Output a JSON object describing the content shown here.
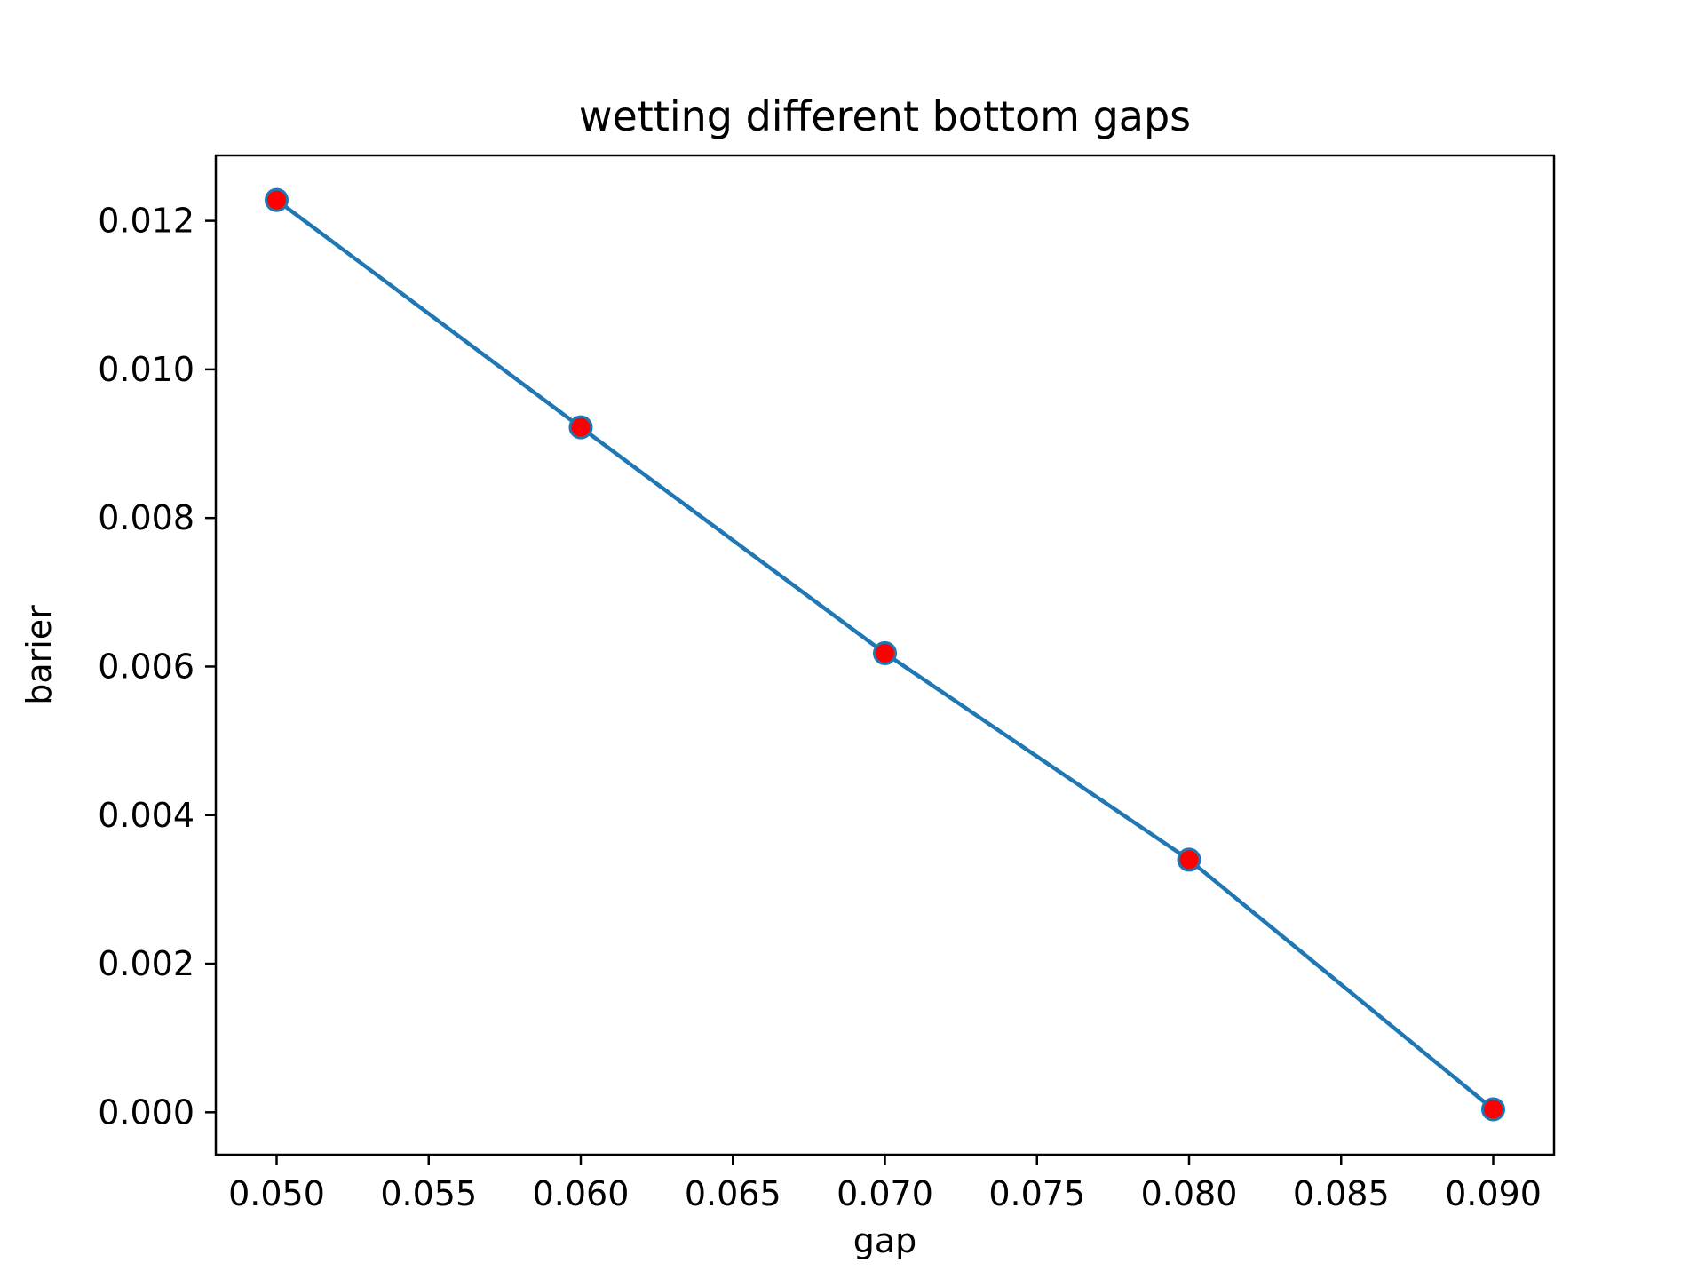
{
  "chart_data": {
    "type": "line",
    "title": "wetting different bottom gaps",
    "xlabel": "gap",
    "ylabel": "barier",
    "x": [
      0.05,
      0.06,
      0.07,
      0.08,
      0.09
    ],
    "series": [
      {
        "values": [
          0.01228,
          0.00922,
          0.00618,
          0.0034,
          4e-05
        ],
        "line_color": "#1f77b4",
        "marker_face_color": "#ff0000",
        "marker_edge_color": "#1f77b4"
      }
    ],
    "xlim": [
      0.048,
      0.092
    ],
    "ylim": [
      -0.00057,
      0.01288
    ],
    "xticks": [
      0.05,
      0.055,
      0.06,
      0.065,
      0.07,
      0.075,
      0.08,
      0.085,
      0.09
    ],
    "xtick_labels": [
      "0.050",
      "0.055",
      "0.060",
      "0.065",
      "0.070",
      "0.075",
      "0.080",
      "0.085",
      "0.090"
    ],
    "yticks": [
      0,
      0.002,
      0.004,
      0.006,
      0.008,
      0.01,
      0.012
    ],
    "ytick_labels": [
      "0.000",
      "0.002",
      "0.004",
      "0.006",
      "0.008",
      "0.010",
      "0.012"
    ],
    "grid": false,
    "legend": false
  }
}
